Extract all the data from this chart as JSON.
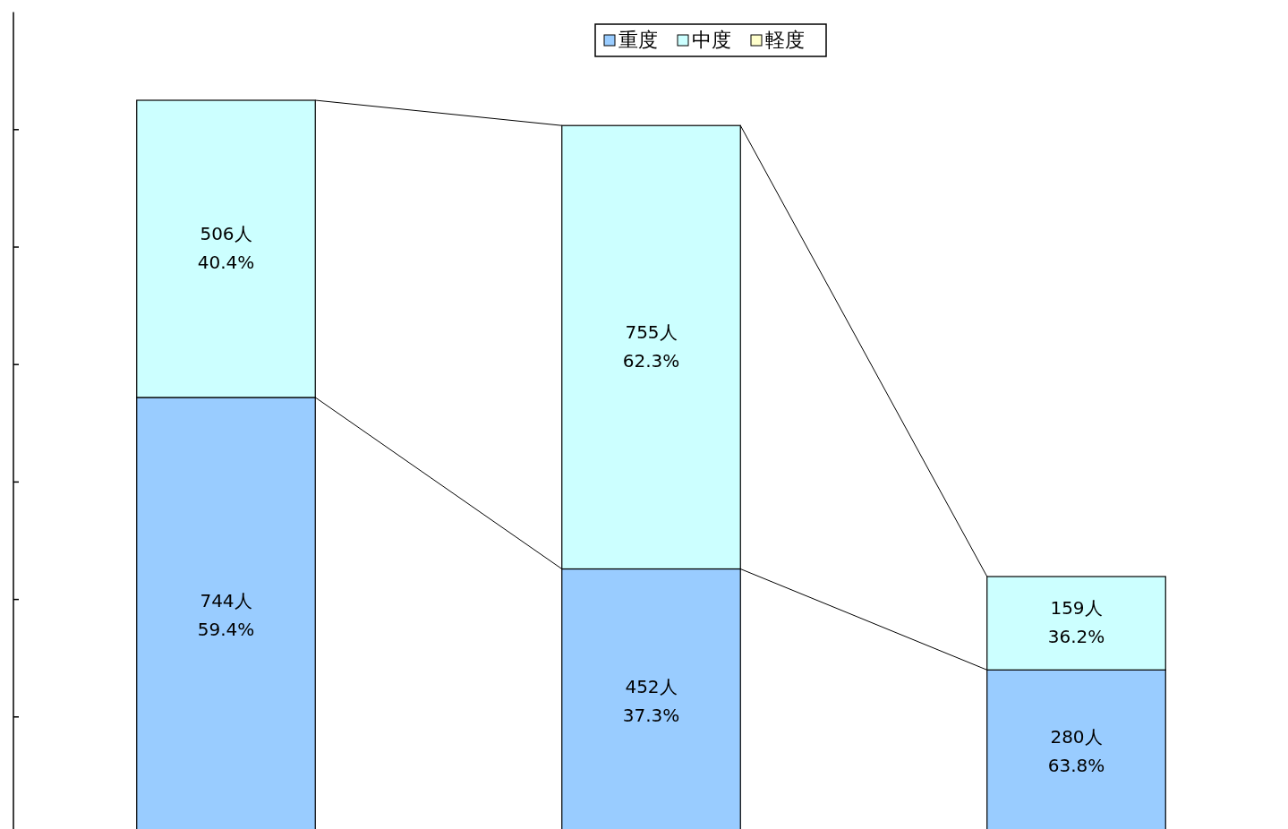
{
  "chart_data": {
    "type": "bar",
    "stacked": true,
    "categories": [
      null,
      null,
      null
    ],
    "series": [
      {
        "name": "重度",
        "color": "#99ccff",
        "values": [
          744,
          452,
          280
        ],
        "value_labels": [
          "744人\n59.4%",
          "452人\n37.3%",
          "280人\n63.8%"
        ]
      },
      {
        "name": "中度",
        "color": "#ccffff",
        "values": [
          506,
          755,
          159
        ],
        "value_labels": [
          "506人\n40.4%",
          "755人\n62.3%",
          "159人\n36.2%"
        ]
      },
      {
        "name": "軽度",
        "color": "#ffffcc",
        "values": [
          null,
          null,
          null
        ]
      }
    ],
    "ylim": [
      0,
      1400
    ],
    "legend": "top"
  }
}
